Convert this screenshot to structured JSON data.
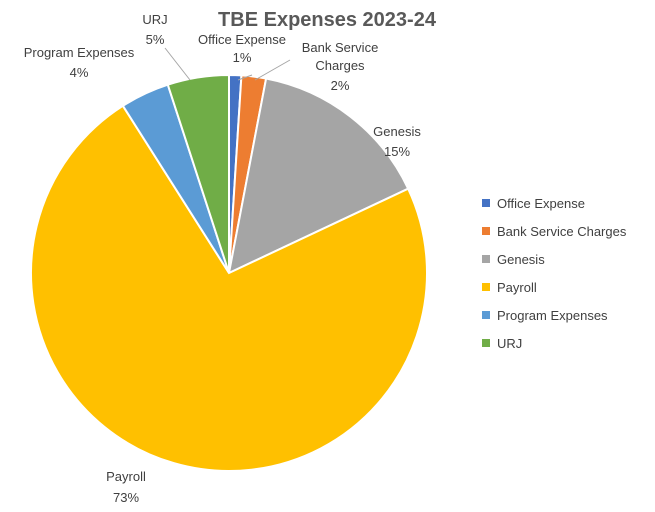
{
  "chart_data": {
    "type": "pie",
    "title": "TBE Expenses 2023-24",
    "slices": [
      {
        "name": "Office Expense",
        "value": 1,
        "label": "1%",
        "color": "#4472c4"
      },
      {
        "name": "Bank Service Charges",
        "value": 2,
        "label": "2%",
        "color": "#ed7d31"
      },
      {
        "name": "Genesis",
        "value": 15,
        "label": "15%",
        "color": "#a5a5a5"
      },
      {
        "name": "Payroll",
        "value": 73,
        "label": "73%",
        "color": "#ffc000"
      },
      {
        "name": "Program Expenses",
        "value": 4,
        "label": "4%",
        "color": "#5b9bd5"
      },
      {
        "name": "URJ",
        "value": 5,
        "label": "5%",
        "color": "#70ad47"
      }
    ],
    "legend_position": "right"
  }
}
